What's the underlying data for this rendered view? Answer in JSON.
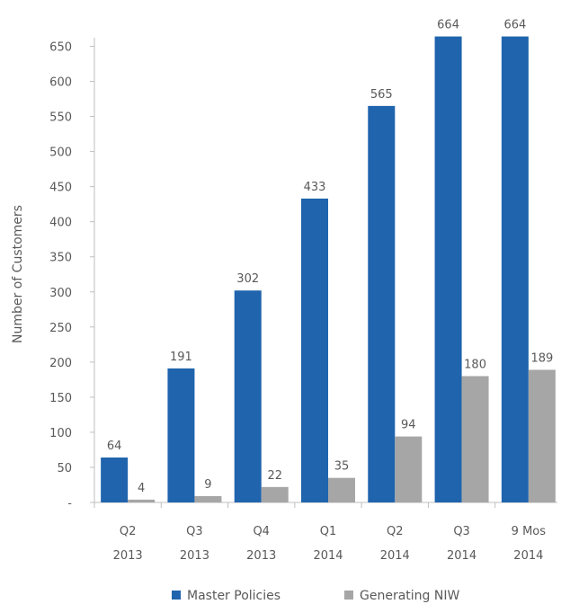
{
  "chart_data": {
    "type": "bar",
    "categories": [
      [
        "Q2",
        "2013"
      ],
      [
        "Q3",
        "2013"
      ],
      [
        "Q4",
        "2013"
      ],
      [
        "Q1",
        "2014"
      ],
      [
        "Q2",
        "2014"
      ],
      [
        "Q3",
        "2014"
      ],
      [
        "9 Mos",
        "2014"
      ]
    ],
    "series": [
      {
        "name": "Master Policies",
        "values": [
          64,
          191,
          302,
          433,
          565,
          664,
          664
        ],
        "color": "#1F64AD"
      },
      {
        "name": "Generating NIW",
        "values": [
          4,
          9,
          22,
          35,
          94,
          180,
          189
        ],
        "color": "#A6A6A6"
      }
    ],
    "title": "",
    "xlabel": "",
    "ylabel": "Number of Customers",
    "ylim": [
      0,
      650
    ],
    "yticks": [
      0,
      50,
      100,
      150,
      200,
      250,
      300,
      350,
      400,
      450,
      500,
      550,
      600,
      650
    ],
    "ytick_labels": [
      "-",
      "50",
      "100",
      "150",
      "200",
      "250",
      "300",
      "350",
      "400",
      "450",
      "500",
      "550",
      "600",
      "650"
    ],
    "grid": false,
    "legend": "bottom"
  }
}
